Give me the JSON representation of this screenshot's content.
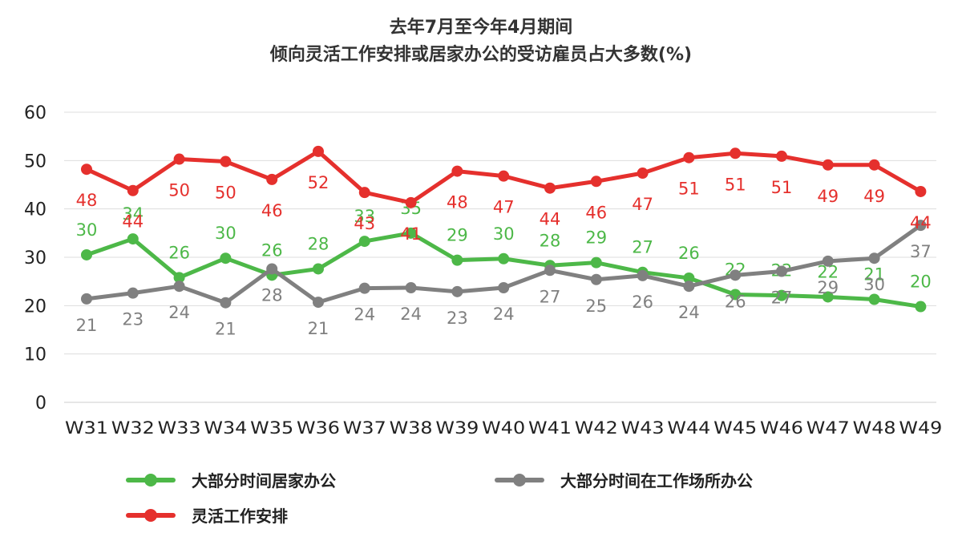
{
  "chart_data": {
    "type": "line",
    "title": [
      "去年7月至今年4月期间",
      "倾向灵活工作安排或居家办公的受访雇员占大多数(%)"
    ],
    "xlabel": "",
    "ylabel": "",
    "ylim": [
      0,
      60
    ],
    "yticks": [
      0,
      10,
      20,
      30,
      40,
      50,
      60
    ],
    "grid": true,
    "legend_position": "bottom",
    "categories": [
      "W31",
      "W32",
      "W33",
      "W34",
      "W35",
      "W36",
      "W37",
      "W38",
      "W39",
      "W40",
      "W41",
      "W42",
      "W43",
      "W44",
      "W45",
      "W46",
      "W47",
      "W48",
      "W49"
    ],
    "series": [
      {
        "name": "大部分时间居家办公",
        "color": "#4db848",
        "values": [
          30.5,
          33.8,
          25.8,
          29.8,
          26.3,
          27.6,
          33.3,
          35,
          29.4,
          29.7,
          28.3,
          28.9,
          26.9,
          25.7,
          22.3,
          22.1,
          21.8,
          21.3,
          19.8
        ],
        "labels": [
          30,
          34,
          26,
          30,
          26,
          28,
          33,
          35,
          29,
          30,
          28,
          29,
          27,
          26,
          22,
          22,
          22,
          21,
          20
        ]
      },
      {
        "name": "大部分时间在工作场所办公",
        "color": "#808080",
        "values": [
          21.4,
          22.6,
          24,
          20.6,
          27.6,
          20.7,
          23.6,
          23.7,
          22.9,
          23.7,
          27.3,
          25.4,
          26.2,
          24,
          26.3,
          27.1,
          29.2,
          29.8,
          36.6
        ],
        "labels": [
          21,
          23,
          24,
          21,
          28,
          21,
          24,
          24,
          23,
          24,
          27,
          25,
          26,
          24,
          26,
          27,
          29,
          30,
          37
        ]
      },
      {
        "name": "灵活工作安排",
        "color": "#e5302d",
        "values": [
          48.2,
          43.8,
          50.3,
          49.8,
          46.1,
          51.9,
          43.4,
          41.3,
          47.8,
          46.8,
          44.3,
          45.7,
          47.4,
          50.6,
          51.5,
          50.9,
          49.1,
          49.1,
          43.6
        ],
        "labels": [
          48,
          44,
          50,
          50,
          46,
          52,
          43,
          41,
          48,
          47,
          44,
          46,
          47,
          51,
          51,
          51,
          49,
          49,
          44
        ]
      }
    ]
  }
}
